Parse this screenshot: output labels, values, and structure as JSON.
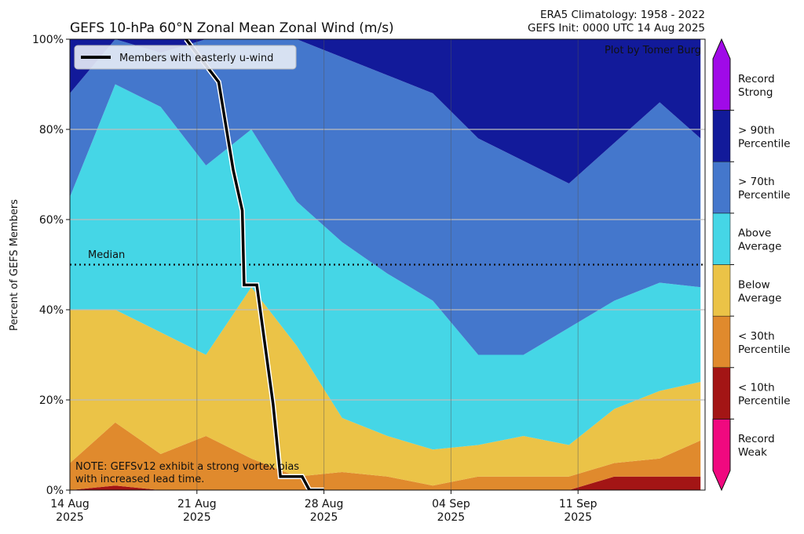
{
  "chart_data": {
    "type": "area",
    "title": "GEFS 10-hPa 60°N Zonal Mean Zonal Wind (m/s)",
    "subtitle_lines": [
      "ERA5 Climatology: 1958 - 2022",
      "GEFS Init: 0000 UTC 14 Aug 2025"
    ],
    "credit": "Plot by Tomer Burg",
    "note_lines": [
      "NOTE: GEFSv12 exhibit a strong vortex bias",
      "with increased lead time."
    ],
    "ylabel": "Percent of GEFS Members",
    "ylim": [
      0,
      100
    ],
    "yticks": [
      0,
      20,
      40,
      60,
      80,
      100
    ],
    "ytick_labels": [
      "0%",
      "20%",
      "40%",
      "60%",
      "80%",
      "100%"
    ],
    "xlim_days": [
      0,
      35
    ],
    "xticks": [
      {
        "day": 0,
        "line1": "14 Aug",
        "line2": "2025"
      },
      {
        "day": 7,
        "line1": "21 Aug",
        "line2": "2025"
      },
      {
        "day": 14,
        "line1": "28 Aug",
        "line2": "2025"
      },
      {
        "day": 21,
        "line1": "04 Sep",
        "line2": "2025"
      },
      {
        "day": 28,
        "line1": "11 Sep",
        "line2": "2025"
      }
    ],
    "median": {
      "value": 50,
      "label": "Median"
    },
    "grid": true,
    "legend": {
      "placement": "upper-left",
      "label": "Members with easterly u-wind"
    },
    "categories": [
      {
        "name": "Record Weak",
        "line1": "Record",
        "line2": "Weak",
        "color": "#f0097f"
      },
      {
        "name": "< 10th Percentile",
        "line1": "< 10th",
        "line2": "Percentile",
        "color": "#a31515"
      },
      {
        "name": "< 30th Percentile",
        "line1": "< 30th",
        "line2": "Percentile",
        "color": "#e08a2d"
      },
      {
        "name": "Below Average",
        "line1": "Below",
        "line2": "Average",
        "color": "#ebc347"
      },
      {
        "name": "Above Average",
        "line1": "Above",
        "line2": "Average",
        "color": "#45d6e6"
      },
      {
        "name": "> 70th Percentile",
        "line1": "> 70th",
        "line2": "Percentile",
        "color": "#4477cc"
      },
      {
        "name": "> 90th Percentile",
        "line1": "> 90th",
        "line2": "Percentile",
        "color": "#121a9a"
      },
      {
        "name": "Record Strong",
        "line1": "Record",
        "line2": "Strong",
        "color": "#a00ae8"
      }
    ],
    "cumulative_boundaries": {
      "x_days": [
        0,
        2.5,
        5,
        7.5,
        10,
        12.5,
        15,
        17.5,
        20,
        22.5,
        25,
        27.5,
        30,
        32.5,
        34.75
      ],
      "b10": [
        0,
        0,
        0,
        0,
        0,
        0,
        0,
        0,
        0,
        0,
        0,
        0,
        0,
        0,
        0
      ],
      "b30": [
        0,
        1,
        0,
        0,
        0,
        0,
        0,
        0,
        0,
        0,
        0,
        0,
        3,
        3,
        3
      ],
      "b_below": [
        6,
        15,
        8,
        12,
        7,
        3,
        4,
        3,
        1,
        3,
        3,
        3,
        6,
        7,
        11
      ],
      "b_above": [
        40,
        40,
        35,
        30,
        45,
        32,
        16,
        12,
        9,
        10,
        12,
        10,
        18,
        22,
        24
      ],
      "b_70": [
        65,
        90,
        85,
        72,
        80,
        64,
        55,
        48,
        42,
        30,
        30,
        36,
        42,
        46,
        45
      ],
      "b_90": [
        88,
        100,
        97,
        100,
        100,
        100,
        96,
        92,
        88,
        78,
        73,
        68,
        77,
        86,
        78
      ],
      "b_record": [
        100,
        100,
        100,
        100,
        100,
        100,
        100,
        100,
        100,
        100,
        100,
        100,
        100,
        100,
        100
      ]
    },
    "easterly_members": {
      "x_days": [
        6.4,
        8.2,
        9.0,
        9.5,
        9.6,
        10.3,
        11.2,
        11.6,
        12.2,
        12.8,
        13.2,
        14.0
      ],
      "y": [
        100,
        90.5,
        71,
        62,
        45.5,
        45.5,
        19,
        3,
        3,
        3,
        0,
        0
      ]
    }
  }
}
